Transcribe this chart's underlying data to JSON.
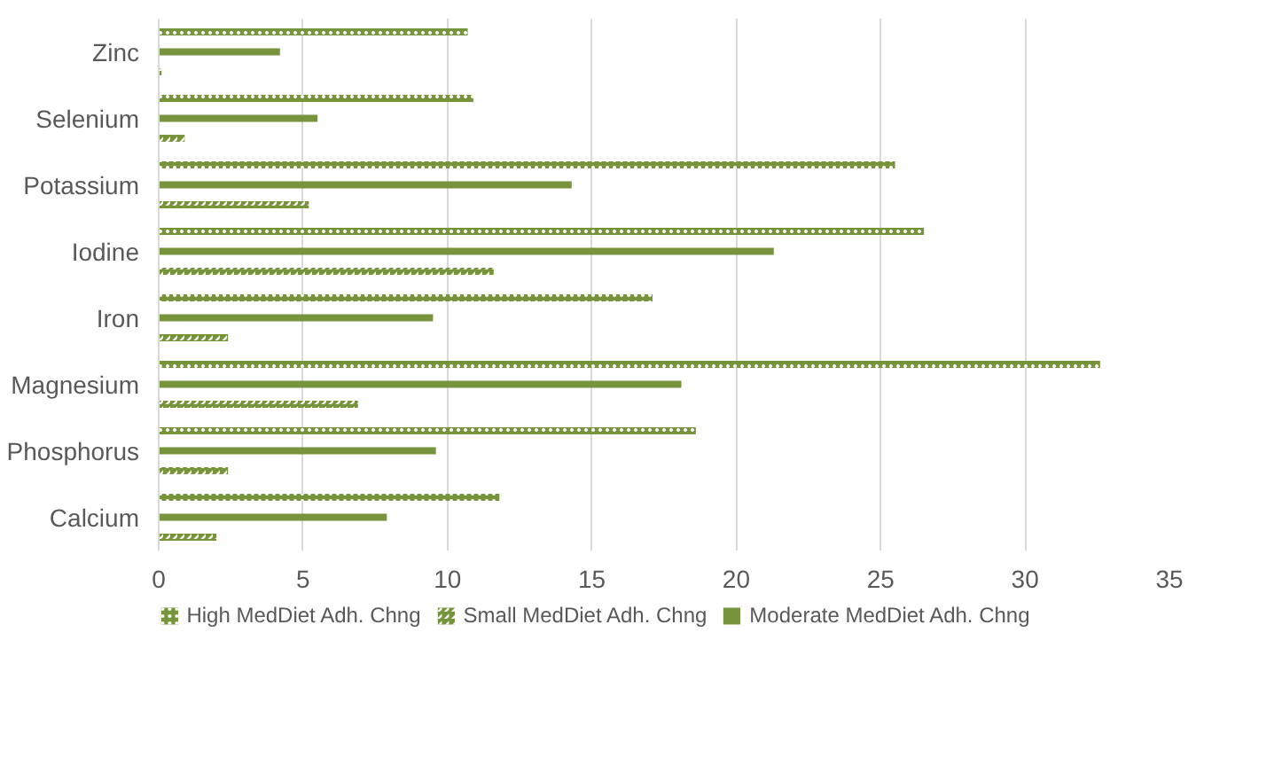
{
  "chart_data": {
    "type": "bar",
    "orientation": "horizontal",
    "categories": [
      "Zinc",
      "Selenium",
      "Potassium",
      "Iodine",
      "Iron",
      "Magnesium",
      "Phosphorus",
      "Calcium"
    ],
    "series": [
      {
        "name": "High MedDiet Adh. Chng",
        "color": "#77933c",
        "values": [
          10.7,
          10.9,
          25.5,
          26.5,
          17.1,
          32.6,
          18.6,
          11.8
        ]
      },
      {
        "name": "Small MedDiet Adh. Chng",
        "color": "#77933c",
        "values": [
          0.1,
          0.9,
          5.2,
          11.6,
          2.4,
          6.9,
          2.4,
          2.0
        ]
      },
      {
        "name": "Moderate MedDiet Adh. Chng",
        "color": "#77933c",
        "values": [
          4.2,
          5.5,
          14.3,
          21.3,
          9.5,
          18.1,
          9.6,
          7.9
        ]
      }
    ],
    "xlim": [
      0,
      35
    ],
    "xticks": [
      0,
      5,
      10,
      15,
      20,
      25,
      30,
      35
    ],
    "grid": "x",
    "legend": "bottom"
  }
}
